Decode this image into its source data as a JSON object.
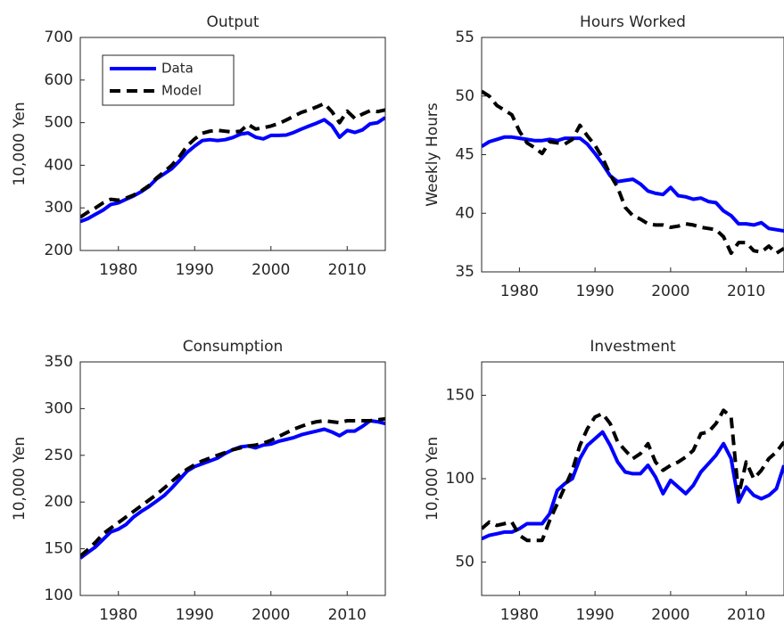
{
  "chart_data": [
    {
      "type": "line",
      "title": "Output",
      "ylabel": "10,000 Yen",
      "legend": "upper left",
      "x": [
        1975,
        1976,
        1977,
        1978,
        1979,
        1980,
        1981,
        1982,
        1983,
        1984,
        1985,
        1986,
        1987,
        1988,
        1989,
        1990,
        1991,
        1992,
        1993,
        1994,
        1995,
        1996,
        1997,
        1998,
        1999,
        2000,
        2001,
        2002,
        2003,
        2004,
        2005,
        2006,
        2007,
        2008,
        2009,
        2010,
        2011,
        2012,
        2013,
        2014,
        2015
      ],
      "series": [
        {
          "name": "Data",
          "color": "#0000ff",
          "linestyle": "solid",
          "values": [
            268,
            275,
            285,
            295,
            308,
            312,
            320,
            328,
            338,
            350,
            368,
            380,
            392,
            410,
            430,
            445,
            458,
            460,
            458,
            460,
            465,
            473,
            476,
            466,
            462,
            470,
            470,
            471,
            477,
            485,
            492,
            499,
            507,
            493,
            466,
            482,
            477,
            483,
            497,
            500,
            512
          ]
        },
        {
          "name": "Model",
          "color": "#000000",
          "linestyle": "dashed",
          "values": [
            278,
            290,
            300,
            312,
            320,
            318,
            323,
            330,
            340,
            352,
            370,
            385,
            400,
            420,
            445,
            462,
            475,
            480,
            482,
            480,
            478,
            480,
            496,
            485,
            488,
            492,
            498,
            506,
            515,
            524,
            530,
            537,
            545,
            526,
            500,
            527,
            510,
            520,
            528,
            526,
            530
          ]
        }
      ],
      "xlim": [
        1975,
        2015
      ],
      "xticks": [
        1980,
        1990,
        2000,
        2010
      ],
      "ylim": [
        200,
        700
      ],
      "yticks": [
        200,
        300,
        400,
        500,
        600,
        700
      ]
    },
    {
      "type": "line",
      "title": "Hours Worked",
      "ylabel": "Weekly Hours",
      "x": [
        1975,
        1976,
        1977,
        1978,
        1979,
        1980,
        1981,
        1982,
        1983,
        1984,
        1985,
        1986,
        1987,
        1988,
        1989,
        1990,
        1991,
        1992,
        1993,
        1994,
        1995,
        1996,
        1997,
        1998,
        1999,
        2000,
        2001,
        2002,
        2003,
        2004,
        2005,
        2006,
        2007,
        2008,
        2009,
        2010,
        2011,
        2012,
        2013,
        2014,
        2015
      ],
      "series": [
        {
          "name": "Data",
          "color": "#0000ff",
          "linestyle": "solid",
          "values": [
            45.7,
            46.1,
            46.3,
            46.5,
            46.5,
            46.4,
            46.3,
            46.2,
            46.2,
            46.3,
            46.2,
            46.4,
            46.4,
            46.4,
            45.9,
            45.1,
            44.2,
            43.2,
            42.7,
            42.8,
            42.9,
            42.5,
            41.9,
            41.7,
            41.6,
            42.2,
            41.5,
            41.4,
            41.2,
            41.3,
            41.0,
            40.9,
            40.2,
            39.8,
            39.1,
            39.1,
            39.0,
            39.2,
            38.7,
            38.6,
            38.5
          ]
        },
        {
          "name": "Model",
          "color": "#000000",
          "linestyle": "dashed",
          "values": [
            50.4,
            50.0,
            49.2,
            48.8,
            48.4,
            47.0,
            46.0,
            45.6,
            45.1,
            46.1,
            46.0,
            45.9,
            46.3,
            47.5,
            46.6,
            45.8,
            44.7,
            43.3,
            42.2,
            40.5,
            39.8,
            39.5,
            39.1,
            39.0,
            39.0,
            38.8,
            38.9,
            39.1,
            39.0,
            38.8,
            38.7,
            38.6,
            38.0,
            36.6,
            37.5,
            37.5,
            36.8,
            36.7,
            37.2,
            36.6,
            37.0
          ]
        }
      ],
      "xlim": [
        1975,
        2015
      ],
      "xticks": [
        1980,
        1990,
        2000,
        2010
      ],
      "ylim": [
        35,
        55
      ],
      "yticks": [
        35,
        40,
        45,
        50,
        55
      ]
    },
    {
      "type": "line",
      "title": "Consumption",
      "ylabel": "10,000 Yen",
      "x": [
        1975,
        1976,
        1977,
        1978,
        1979,
        1980,
        1981,
        1982,
        1983,
        1984,
        1985,
        1986,
        1987,
        1988,
        1989,
        1990,
        1991,
        1992,
        1993,
        1994,
        1995,
        1996,
        1997,
        1998,
        1999,
        2000,
        2001,
        2002,
        2003,
        2004,
        2005,
        2006,
        2007,
        2008,
        2009,
        2010,
        2011,
        2012,
        2013,
        2014,
        2015
      ],
      "series": [
        {
          "name": "Data",
          "color": "#0000ff",
          "linestyle": "solid",
          "values": [
            140,
            146,
            152,
            160,
            168,
            171,
            176,
            184,
            190,
            195,
            201,
            207,
            215,
            224,
            233,
            238,
            241,
            244,
            247,
            252,
            256,
            259,
            260,
            258,
            261,
            262,
            265,
            267,
            269,
            272,
            274,
            276,
            278,
            275,
            271,
            276,
            276,
            281,
            287,
            286,
            284
          ]
        },
        {
          "name": "Model",
          "color": "#000000",
          "linestyle": "dashed",
          "values": [
            142,
            149,
            157,
            166,
            172,
            178,
            184,
            190,
            196,
            202,
            208,
            215,
            222,
            229,
            235,
            240,
            244,
            247,
            250,
            253,
            256,
            258,
            260,
            261,
            263,
            266,
            270,
            274,
            278,
            281,
            284,
            286,
            287,
            286,
            285,
            287,
            287,
            287,
            287,
            288,
            289
          ]
        }
      ],
      "xlim": [
        1975,
        2015
      ],
      "xticks": [
        1980,
        1990,
        2000,
        2010
      ],
      "ylim": [
        100,
        350
      ],
      "yticks": [
        100,
        150,
        200,
        250,
        300,
        350
      ]
    },
    {
      "type": "line",
      "title": "Investment",
      "ylabel": "10,000 Yen",
      "x": [
        1975,
        1976,
        1977,
        1978,
        1979,
        1980,
        1981,
        1982,
        1983,
        1984,
        1985,
        1986,
        1987,
        1988,
        1989,
        1990,
        1991,
        1992,
        1993,
        1994,
        1995,
        1996,
        1997,
        1998,
        1999,
        2000,
        2001,
        2002,
        2003,
        2004,
        2005,
        2006,
        2007,
        2008,
        2009,
        2010,
        2011,
        2012,
        2013,
        2014,
        2015
      ],
      "series": [
        {
          "name": "Data",
          "color": "#0000ff",
          "linestyle": "solid",
          "values": [
            64,
            66,
            67,
            68,
            68,
            70,
            73,
            73,
            73,
            79,
            93,
            97,
            100,
            112,
            120,
            124,
            128,
            120,
            110,
            104,
            103,
            103,
            108,
            101,
            91,
            99,
            95,
            91,
            96,
            104,
            109,
            114,
            121,
            112,
            86,
            95,
            90,
            88,
            90,
            94,
            108
          ]
        },
        {
          "name": "Model",
          "color": "#000000",
          "linestyle": "dashed",
          "values": [
            70,
            74,
            72,
            73,
            74,
            66,
            63,
            63,
            63,
            75,
            85,
            95,
            105,
            120,
            130,
            137,
            139,
            133,
            122,
            117,
            112,
            115,
            121,
            110,
            105,
            108,
            110,
            113,
            117,
            127,
            128,
            133,
            141,
            137,
            90,
            110,
            100,
            105,
            112,
            116,
            122
          ]
        }
      ],
      "xlim": [
        1975,
        2015
      ],
      "xticks": [
        1980,
        1990,
        2000,
        2010
      ],
      "ylim": [
        30,
        170
      ],
      "yticks": [
        50,
        100,
        150
      ]
    }
  ]
}
